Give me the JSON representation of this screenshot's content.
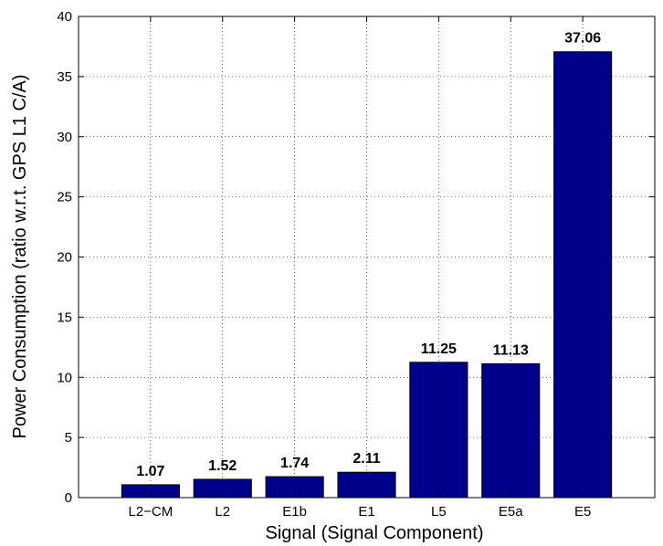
{
  "chart_data": {
    "type": "bar",
    "title": "",
    "xlabel": "Signal (Signal Component)",
    "ylabel": "Power Consumption (ratio w.r.t. GPS L1 C/A)",
    "categories": [
      "L2−CM",
      "L2",
      "E1b",
      "E1",
      "L5",
      "E5a",
      "E5"
    ],
    "values": [
      1.07,
      1.52,
      1.74,
      2.11,
      11.25,
      11.13,
      37.06
    ],
    "data_labels": [
      "1.07",
      "1.52",
      "1.74",
      "2.11",
      "11.25",
      "11.13",
      "37.06"
    ],
    "ylim": [
      0,
      40
    ],
    "yticks": [
      0,
      5,
      10,
      15,
      20,
      25,
      30,
      35,
      40
    ],
    "ytick_labels": [
      "0",
      "5",
      "10",
      "15",
      "20",
      "25",
      "30",
      "35",
      "40"
    ],
    "grid": true,
    "bar_color": "#00008B",
    "bar_edge_color": "#000000"
  }
}
